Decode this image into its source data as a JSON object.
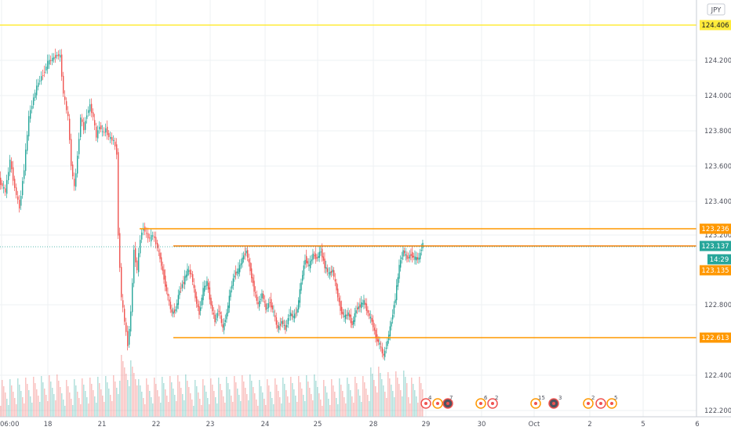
{
  "chart": {
    "currency": "JPY",
    "price_axis_labels": [
      "124.200",
      "124.000",
      "123.800",
      "123.600",
      "123.400",
      "123.200",
      "122.800",
      "122.400",
      "122.200"
    ],
    "time_axis_labels": [
      "06:00",
      "18",
      "21",
      "22",
      "23",
      "24",
      "25",
      "28",
      "29",
      "30",
      "Oct",
      "2",
      "5",
      "6"
    ],
    "level_tags": [
      {
        "label": "124.406",
        "kind": "yellow"
      },
      {
        "label": "123.236",
        "kind": "orange"
      },
      {
        "label": "123.137",
        "kind": "current"
      },
      {
        "label": "14:29",
        "kind": "countdown"
      },
      {
        "label": "123.135",
        "kind": "orange"
      },
      {
        "label": "122.613",
        "kind": "orange"
      }
    ],
    "event_counts": [
      "4",
      "7",
      "6",
      "2",
      "15",
      "3",
      "2",
      "5"
    ],
    "colors": {
      "up": "#26a69a",
      "down": "#ef5350",
      "yellow_line": "#ffeb3b",
      "orange_line": "#ff9800",
      "current_price": "#26a69a",
      "grid": "#eef0f3"
    }
  }
}
